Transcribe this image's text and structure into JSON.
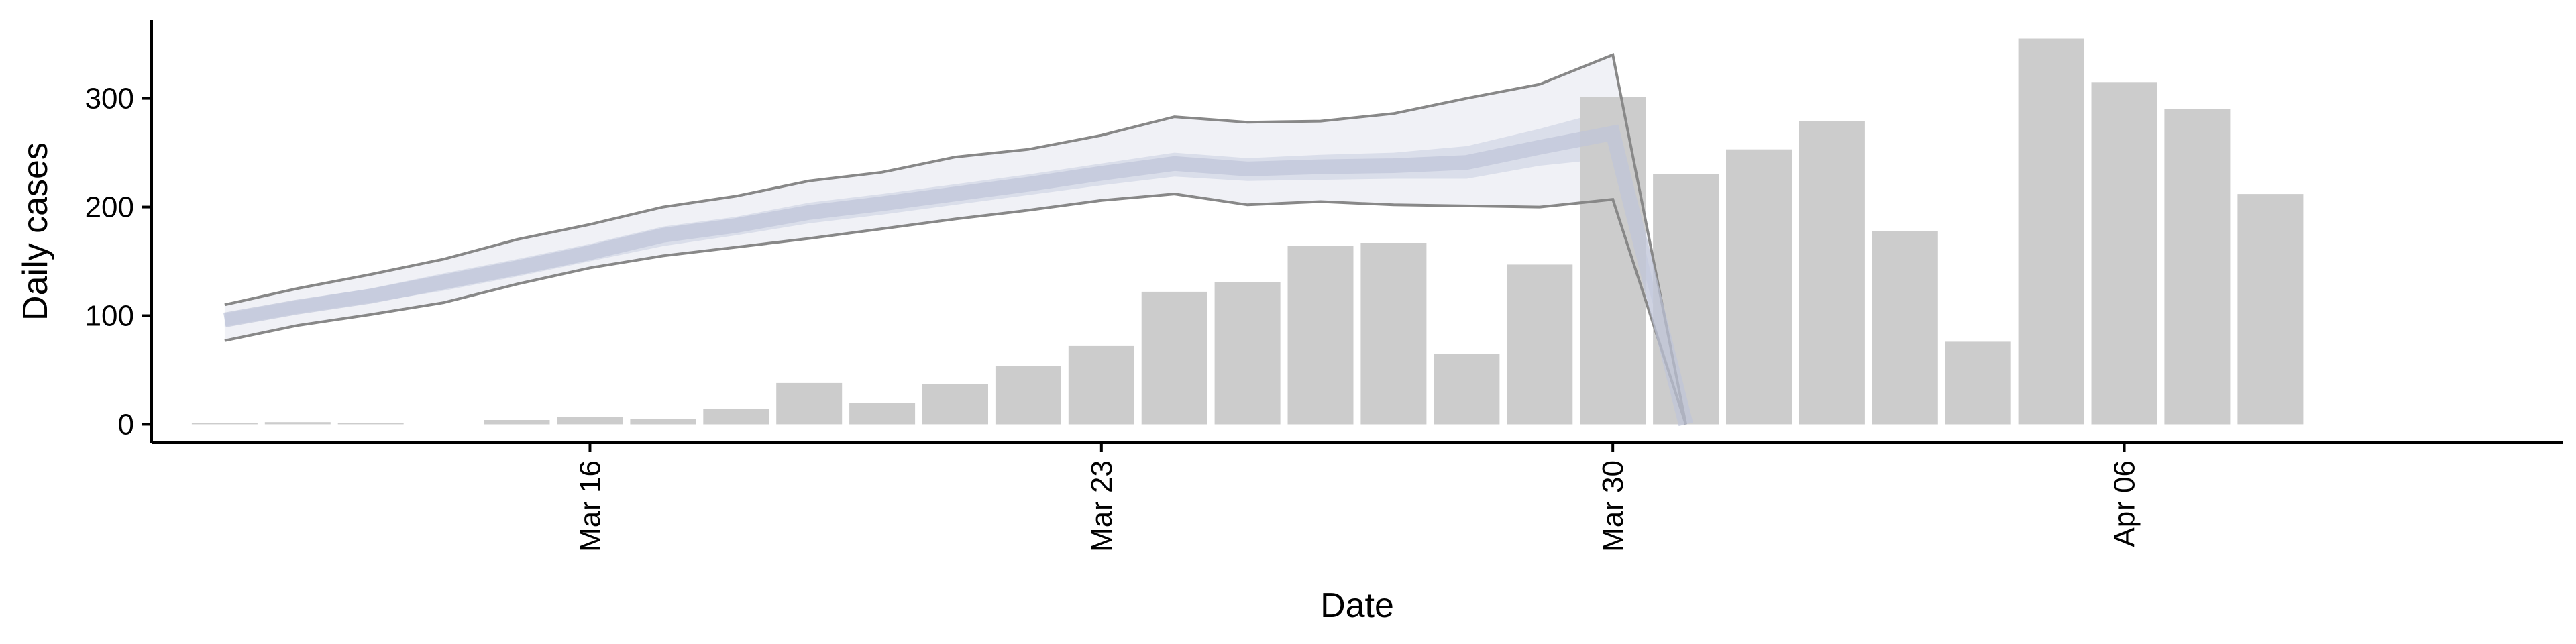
{
  "chart_data": {
    "type": "bar",
    "xlabel": "Date",
    "ylabel": "Daily cases",
    "ylim": [
      -17,
      372
    ],
    "y_ticks": [
      0,
      100,
      200,
      300
    ],
    "x_ticks": [
      {
        "date": "2020-03-16",
        "label": "Mar 16"
      },
      {
        "date": "2020-03-23",
        "label": "Mar 23"
      },
      {
        "date": "2020-03-30",
        "label": "Mar 30"
      },
      {
        "date": "2020-04-06",
        "label": "Apr 06"
      }
    ],
    "xlim": [
      "2020-03-10",
      "2020-04-12"
    ],
    "grid": false,
    "legend": "none",
    "bars": {
      "dates": [
        "2020-03-11",
        "2020-03-12",
        "2020-03-13",
        "2020-03-14",
        "2020-03-15",
        "2020-03-16",
        "2020-03-17",
        "2020-03-18",
        "2020-03-19",
        "2020-03-20",
        "2020-03-21",
        "2020-03-22",
        "2020-03-23",
        "2020-03-24",
        "2020-03-25",
        "2020-03-26",
        "2020-03-27",
        "2020-03-28",
        "2020-03-29",
        "2020-03-30",
        "2020-03-31",
        "2020-04-01",
        "2020-04-02",
        "2020-04-03",
        "2020-04-04",
        "2020-04-05",
        "2020-04-06",
        "2020-04-07",
        "2020-04-08",
        "2020-04-09"
      ],
      "values": [
        1,
        2,
        1,
        0,
        4,
        7,
        5,
        14,
        38,
        20,
        37,
        54,
        72,
        122,
        131,
        164,
        167,
        65,
        147,
        301,
        230,
        253,
        279,
        178,
        76,
        355,
        315,
        290,
        212,
        0
      ],
      "color": "#cccccc"
    },
    "estimate": {
      "dates": [
        "2020-03-11",
        "2020-03-12",
        "2020-03-13",
        "2020-03-14",
        "2020-03-15",
        "2020-03-16",
        "2020-03-17",
        "2020-03-18",
        "2020-03-19",
        "2020-03-20",
        "2020-03-21",
        "2020-03-22",
        "2020-03-23",
        "2020-03-24",
        "2020-03-25",
        "2020-03-26",
        "2020-03-27",
        "2020-03-28",
        "2020-03-29",
        "2020-03-30",
        "2020-03-31"
      ],
      "upper90": [
        110,
        125,
        138,
        152,
        170,
        184,
        200,
        210,
        224,
        232,
        246,
        253,
        266,
        283,
        278,
        279,
        286,
        300,
        313,
        340,
        0
      ],
      "lower90": [
        77,
        91,
        101,
        112,
        129,
        144,
        155,
        163,
        171,
        180,
        189,
        197,
        206,
        212,
        202,
        205,
        202,
        201,
        200,
        207,
        0
      ],
      "upper50": [
        102,
        114,
        125,
        139,
        152,
        166,
        182,
        191,
        204,
        212,
        221,
        230,
        240,
        250,
        245,
        248,
        250,
        256,
        272,
        290,
        0
      ],
      "lower50": [
        90,
        102,
        112,
        123,
        136,
        150,
        164,
        174,
        185,
        193,
        202,
        211,
        220,
        228,
        224,
        225,
        226,
        226,
        238,
        245,
        0
      ],
      "median": [
        96,
        108,
        118,
        131,
        144,
        158,
        174,
        183,
        195,
        203,
        212,
        221,
        231,
        240,
        235,
        237,
        238,
        241,
        255,
        268,
        0
      ],
      "band_color": "#dde0ec",
      "band_inner_color": "#c9cee0",
      "line_color": "#888888"
    }
  }
}
